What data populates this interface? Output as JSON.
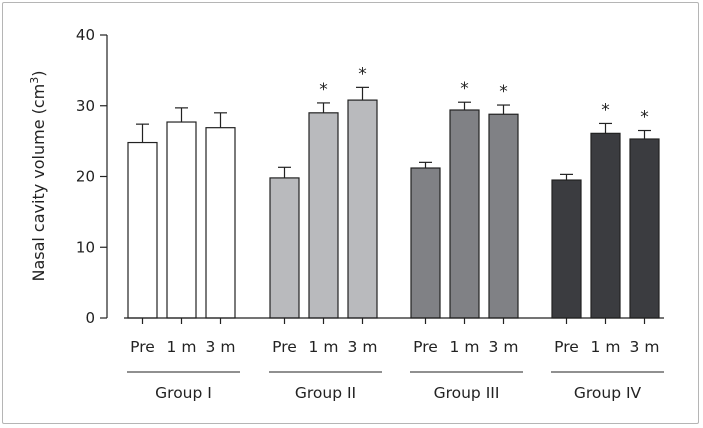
{
  "chart_data": {
    "type": "bar",
    "title": "",
    "xlabel": "",
    "ylabel": "Nasal cavity volume (cm",
    "ylabel_sup": "3",
    "ylabel_close": ")",
    "ylim": [
      0,
      40
    ],
    "yticks": [
      0,
      10,
      20,
      30,
      40
    ],
    "grid": false,
    "categories": [
      "Pre",
      "1 m",
      "3 m"
    ],
    "groups": [
      {
        "name": "Group I",
        "color": "#ffffff",
        "values": [
          24.8,
          27.7,
          26.9
        ],
        "errors": [
          2.6,
          2.0,
          2.1
        ],
        "significant": [
          false,
          false,
          false
        ]
      },
      {
        "name": "Group II",
        "color": "#b9babd",
        "values": [
          19.8,
          29.0,
          30.8
        ],
        "errors": [
          1.5,
          1.4,
          1.8
        ],
        "significant": [
          false,
          true,
          true
        ]
      },
      {
        "name": "Group III",
        "color": "#808185",
        "values": [
          21.2,
          29.4,
          28.8
        ],
        "errors": [
          0.8,
          1.1,
          1.3
        ],
        "significant": [
          false,
          true,
          true
        ]
      },
      {
        "name": "Group IV",
        "color": "#3b3c40",
        "values": [
          19.5,
          26.1,
          25.3
        ],
        "errors": [
          0.8,
          1.4,
          1.2
        ],
        "significant": [
          false,
          true,
          true
        ]
      }
    ],
    "significance_marker": "*"
  }
}
